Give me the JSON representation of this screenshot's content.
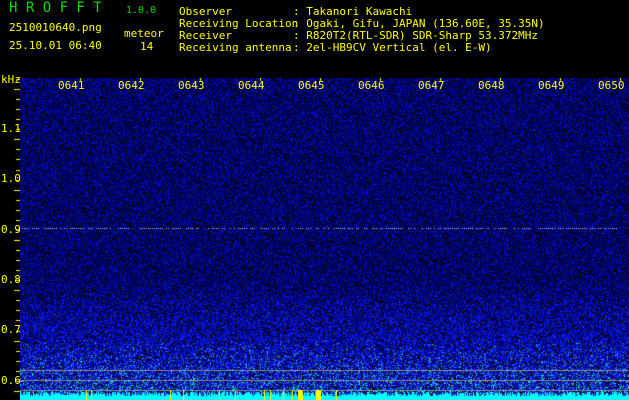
{
  "header": {
    "app_name": "H R O F F T",
    "version": "1.0.0",
    "filename": "2510010640.png",
    "datetime": "25.10.01 06:40",
    "meteor_label": "meteor",
    "meteor_count": "14"
  },
  "info": [
    {
      "key": "Observer",
      "value": ": Takanori Kawachi"
    },
    {
      "key": "Receiving Location",
      "value": ": Ogaki, Gifu, JAPAN (136.60E, 35.35N)"
    },
    {
      "key": "Receiver",
      "value": ": R820T2(RTL-SDR) SDR-Sharp 53.372MHz"
    },
    {
      "key": "Receiving antenna",
      "value": ": 2el-HB9CV Vertical (el. E-W)"
    }
  ],
  "spectrogram": {
    "y_unit": "kHz",
    "y_ticks": [
      "1.1",
      "1.0",
      "0.9",
      "0.8",
      "0.7",
      "0.6"
    ],
    "time_labels": [
      "0641",
      "0642",
      "0643",
      "0644",
      "0645",
      "0646",
      "0647",
      "0648",
      "0649",
      "0650"
    ],
    "colors": {
      "label": "#ffff00",
      "title": "#00e000",
      "noise": "#0000ff",
      "baseline": "#00ffff",
      "marker": "#ffff00"
    }
  }
}
